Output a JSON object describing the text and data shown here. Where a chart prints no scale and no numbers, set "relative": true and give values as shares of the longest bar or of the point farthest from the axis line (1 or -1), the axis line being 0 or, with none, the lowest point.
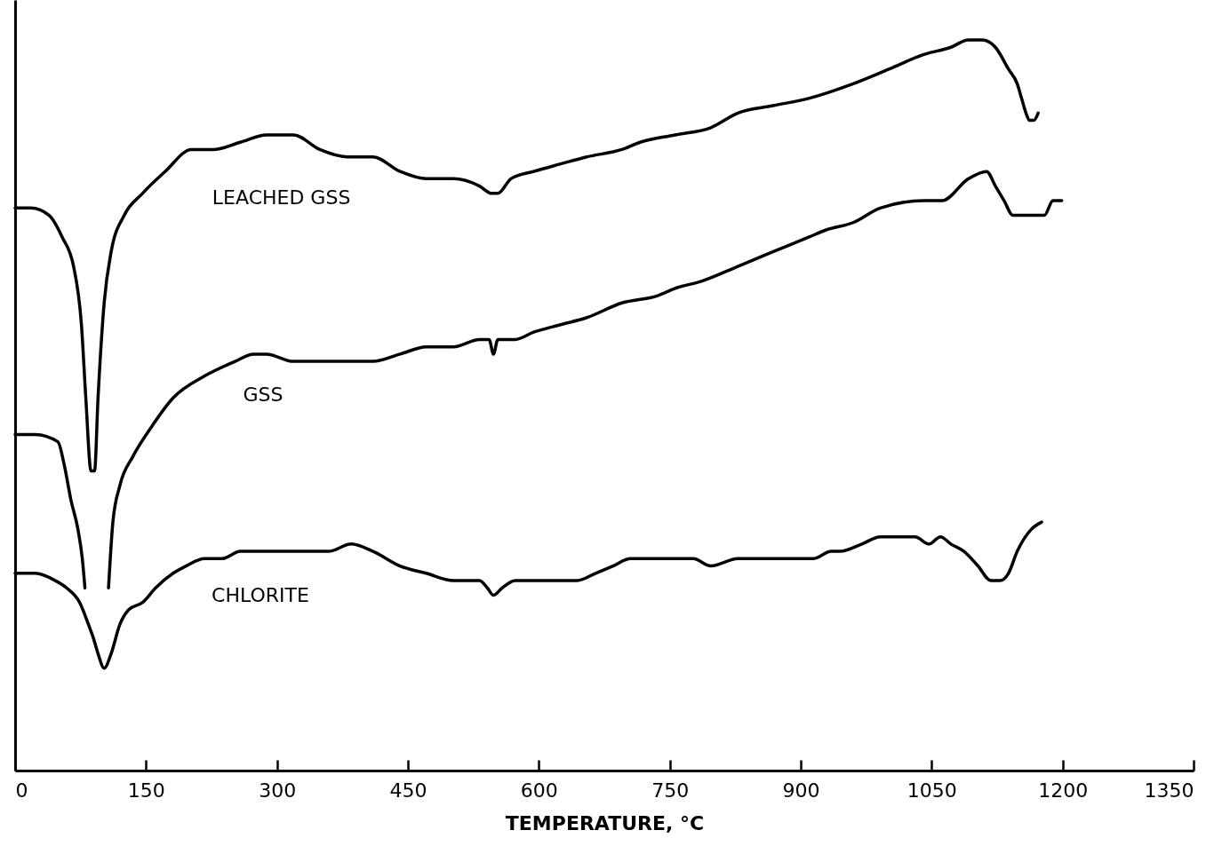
{
  "chart_data": {
    "type": "line",
    "relative": true,
    "xlabel": "TEMPERATURE, °C",
    "xlim": [
      0,
      1350
    ],
    "xticks": [
      0,
      150,
      300,
      450,
      600,
      750,
      900,
      1050,
      1200,
      1350
    ],
    "grid": false,
    "series": [
      {
        "name": "LEACHED GSS",
        "color": "#000000",
        "x": [
          0,
          18,
          39,
          54,
          67,
          76,
          81,
          87,
          91,
          95,
          102,
          110,
          125,
          146,
          172,
          202,
          227,
          258,
          288,
          319,
          349,
          380,
          410,
          441,
          471,
          502,
          532,
          546,
          553,
          568,
          594,
          624,
          655,
          695,
          716,
          756,
          797,
          828,
          868,
          909,
          960,
          1001,
          1041,
          1072,
          1092,
          1108,
          1123,
          1138,
          1148,
          1153,
          1158,
          1162,
          1167,
          1172
        ],
        "values": [
          0.77,
          0.77,
          0.76,
          0.73,
          0.69,
          0.61,
          0.51,
          0.41,
          0.41,
          0.51,
          0.64,
          0.71,
          0.76,
          0.79,
          0.82,
          0.85,
          0.85,
          0.86,
          0.87,
          0.87,
          0.85,
          0.84,
          0.84,
          0.82,
          0.81,
          0.81,
          0.8,
          0.79,
          0.79,
          0.81,
          0.82,
          0.83,
          0.84,
          0.85,
          0.86,
          0.87,
          0.88,
          0.9,
          0.91,
          0.92,
          0.94,
          0.96,
          0.98,
          0.99,
          1.0,
          1.0,
          0.99,
          0.96,
          0.94,
          0.92,
          0.9,
          0.89,
          0.89,
          0.9
        ]
      },
      {
        "name": "GSS",
        "color": "#000000",
        "x": [
          0,
          23,
          49,
          56,
          64,
          72,
          77,
          80,
          95,
          107,
          109,
          112,
          120,
          135,
          156,
          181,
          217,
          252,
          273,
          288,
          319,
          349,
          380,
          410,
          441,
          471,
          502,
          532,
          543,
          548,
          553,
          573,
          594,
          624,
          655,
          695,
          736,
          756,
          787,
          828,
          868,
          909,
          929,
          960,
          991,
          1041,
          1062,
          1092,
          1113,
          1123,
          1133,
          1143,
          1158,
          1169,
          1179,
          1189,
          1199
        ],
        "values": [
          0.46,
          0.46,
          0.45,
          0.42,
          0.37,
          0.33,
          0.29,
          0.25,
          null,
          0.25,
          0.29,
          0.34,
          0.39,
          0.43,
          0.47,
          0.51,
          0.54,
          0.56,
          0.57,
          0.57,
          0.56,
          0.56,
          0.56,
          0.56,
          0.57,
          0.58,
          0.58,
          0.59,
          0.59,
          0.57,
          0.59,
          0.59,
          0.6,
          0.61,
          0.62,
          0.64,
          0.65,
          0.66,
          0.67,
          0.69,
          0.71,
          0.73,
          0.74,
          0.75,
          0.77,
          0.78,
          0.78,
          0.81,
          0.82,
          0.8,
          0.78,
          0.76,
          0.76,
          0.76,
          0.76,
          0.78,
          0.78
        ]
      },
      {
        "name": "CHLORITE",
        "color": "#000000",
        "x": [
          0,
          23,
          46,
          59,
          74,
          84,
          90,
          95,
          102,
          110,
          120,
          130,
          146,
          161,
          181,
          196,
          217,
          237,
          258,
          288,
          303,
          329,
          359,
          385,
          410,
          441,
          471,
          502,
          532,
          541,
          548,
          558,
          573,
          594,
          624,
          644,
          665,
          685,
          705,
          736,
          756,
          777,
          797,
          828,
          858,
          879,
          899,
          914,
          935,
          945,
          970,
          991,
          1011,
          1031,
          1047,
          1060,
          1072,
          1087,
          1103,
          1118,
          1128,
          1138,
          1148,
          1164,
          1176
        ],
        "values": [
          0.27,
          0.27,
          0.26,
          0.25,
          0.23,
          0.2,
          0.18,
          0.16,
          0.14,
          0.16,
          0.2,
          0.22,
          0.23,
          0.25,
          0.27,
          0.28,
          0.29,
          0.29,
          0.3,
          0.3,
          0.3,
          0.3,
          0.3,
          0.31,
          0.3,
          0.28,
          0.27,
          0.26,
          0.26,
          0.25,
          0.24,
          0.25,
          0.26,
          0.26,
          0.26,
          0.26,
          0.27,
          0.28,
          0.29,
          0.29,
          0.29,
          0.29,
          0.28,
          0.29,
          0.29,
          0.29,
          0.29,
          0.29,
          0.3,
          0.3,
          0.31,
          0.32,
          0.32,
          0.32,
          0.31,
          0.32,
          0.31,
          0.3,
          0.28,
          0.26,
          0.26,
          0.27,
          0.3,
          0.33,
          0.34
        ]
      }
    ]
  }
}
